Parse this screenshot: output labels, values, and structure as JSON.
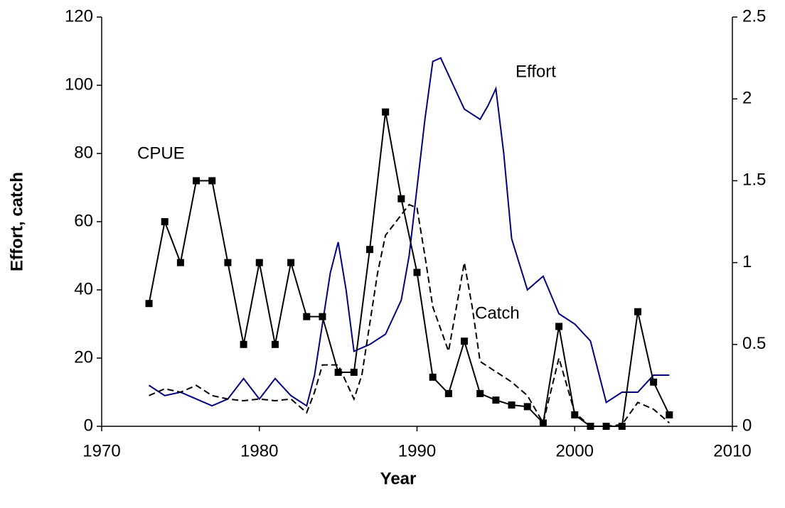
{
  "chart_data": {
    "type": "line",
    "xlabel": "Year",
    "ylabel": "Effort, catch",
    "xlim": [
      1970,
      2010
    ],
    "xticks": [
      1970,
      1980,
      1990,
      2000,
      2010
    ],
    "ylim": [
      0,
      120
    ],
    "yticks": [
      0,
      20,
      40,
      60,
      80,
      100,
      120
    ],
    "y2lim": [
      0,
      2.5
    ],
    "y2ticks": [
      0,
      0.5,
      1,
      1.5,
      2,
      2.5
    ],
    "grid": false,
    "annotations": [
      "Effort",
      "CPUE",
      "Catch"
    ],
    "series": [
      {
        "name": "Effort",
        "color": "#000080",
        "style": "solid",
        "x": [
          1973,
          1974,
          1975,
          1976,
          1977,
          1978,
          1979,
          1980,
          1981,
          1982,
          1983,
          1983.5,
          1984,
          1984.5,
          1985,
          1985.5,
          1986,
          1987,
          1988,
          1989,
          1989.5,
          1990,
          1990.5,
          1991,
          1991.5,
          1992,
          1993,
          1994,
          1994.5,
          1995,
          1995.5,
          1996,
          1997,
          1998,
          1999,
          2000,
          2001,
          2001.5,
          2002,
          2003,
          2004,
          2005,
          2006
        ],
        "values": [
          12,
          9,
          10,
          8,
          6,
          8,
          14,
          8,
          14,
          9,
          6,
          15,
          30,
          45,
          54,
          40,
          22,
          24,
          27,
          37,
          50,
          70,
          90,
          107,
          108,
          103,
          93,
          90,
          94,
          99,
          80,
          55,
          40,
          44,
          33,
          30,
          25,
          16,
          7,
          10,
          10,
          15,
          15
        ]
      },
      {
        "name": "Catch",
        "color": "#000000",
        "style": "dashed",
        "x": [
          1973,
          1974,
          1975,
          1976,
          1977,
          1978,
          1979,
          1980,
          1981,
          1982,
          1983,
          1983.5,
          1984,
          1985,
          1986,
          1986.5,
          1987,
          1987.5,
          1988,
          1989,
          1989.5,
          1990,
          1990.5,
          1991,
          1992,
          1993,
          1993.5,
          1994,
          1995,
          1996,
          1997,
          1998,
          1999,
          2000,
          2001,
          2002,
          2003,
          2004,
          2005,
          2006
        ],
        "values": [
          9,
          11,
          10,
          12,
          9,
          8,
          7.5,
          8,
          7.5,
          8,
          4,
          10,
          18,
          18,
          8,
          15,
          30,
          45,
          56,
          62,
          65,
          64,
          50,
          35,
          22,
          48,
          35,
          19,
          16,
          13,
          9,
          1,
          20,
          4,
          0,
          0,
          0.5,
          7,
          5,
          1
        ]
      },
      {
        "name": "CPUE",
        "color": "#000000",
        "style": "solid",
        "marker": "square",
        "axis": "y2",
        "x": [
          1973,
          1974,
          1975,
          1976,
          1977,
          1978,
          1979,
          1980,
          1981,
          1982,
          1983,
          1984,
          1985,
          1986,
          1987,
          1988,
          1989,
          1990,
          1991,
          1992,
          1993,
          1994,
          1995,
          1996,
          1997,
          1998,
          1999,
          2000,
          2001,
          2002,
          2003,
          2004,
          2005,
          2006
        ],
        "values": [
          0.75,
          1.25,
          1.0,
          1.5,
          1.5,
          1.0,
          0.5,
          1.0,
          0.5,
          1.0,
          0.67,
          0.67,
          0.33,
          0.33,
          1.08,
          1.92,
          1.39,
          0.94,
          0.3,
          0.2,
          0.52,
          0.2,
          0.16,
          0.13,
          0.12,
          0.02,
          0.61,
          0.07,
          0,
          0,
          0,
          0.7,
          0.27,
          0.07
        ]
      }
    ]
  }
}
